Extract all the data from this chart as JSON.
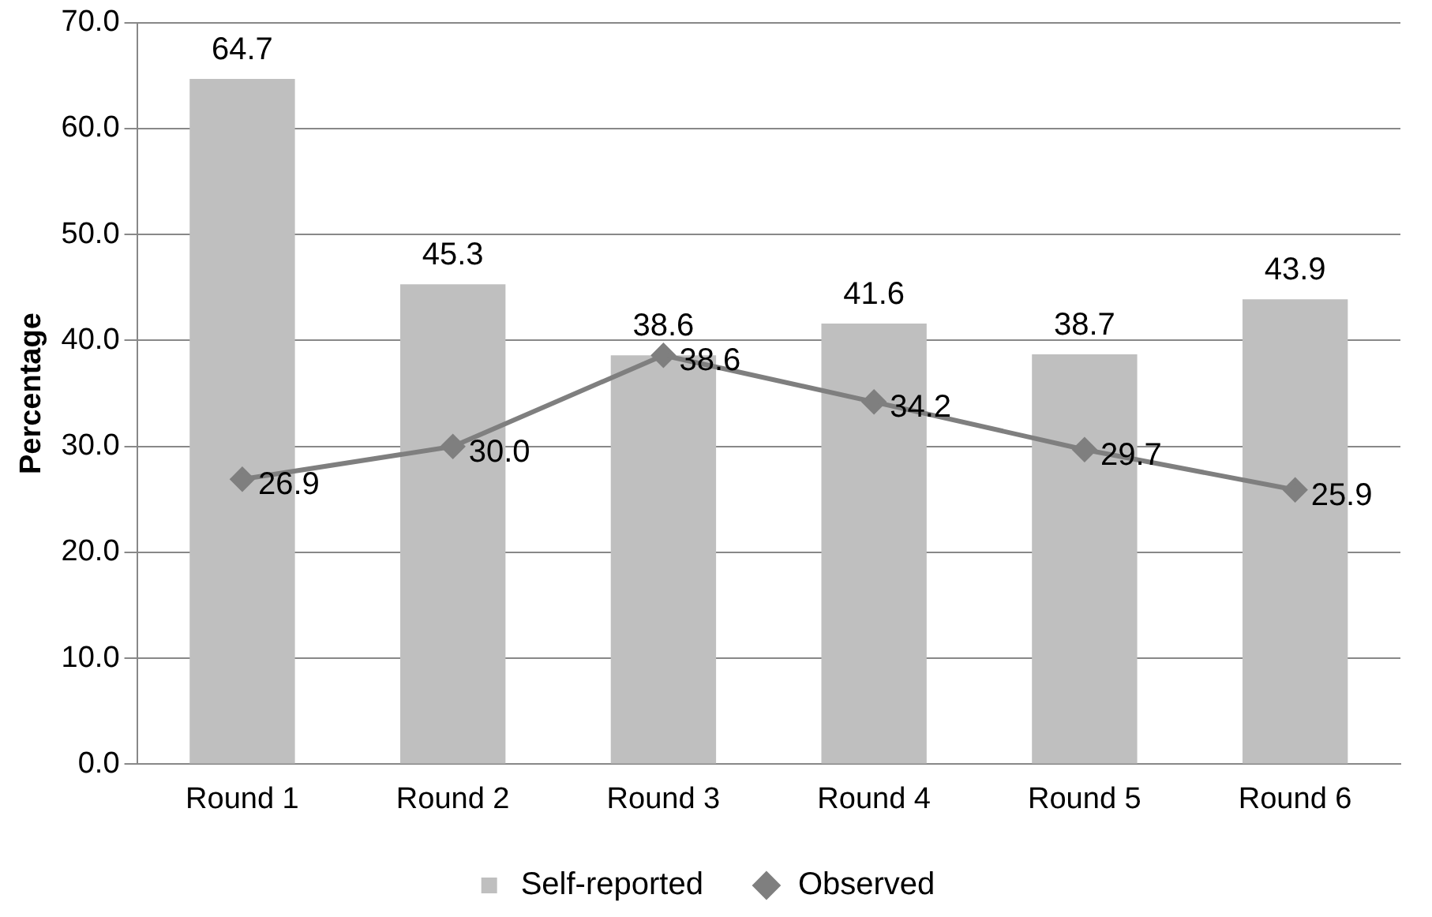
{
  "chart_data": {
    "type": "bar",
    "ylabel": "Percentage",
    "categories": [
      "Round 1",
      "Round 2",
      "Round 3",
      "Round 4",
      "Round 5",
      "Round 6"
    ],
    "series": [
      {
        "name": "Self-reported",
        "color": "#bfbfbf",
        "values": [
          64.7,
          45.3,
          38.6,
          41.6,
          38.7,
          43.9
        ],
        "value_labels": [
          "64.7",
          "45.3",
          "38.6",
          "41.6",
          "38.7",
          "43.9"
        ]
      },
      {
        "name": "Observed",
        "type": "line",
        "color": "#7f7f7f",
        "values": [
          26.9,
          30.0,
          38.6,
          34.2,
          29.7,
          25.9
        ],
        "value_labels": [
          "26.9",
          "30.0",
          "38.6",
          "34.2",
          "29.7",
          "25.9"
        ],
        "marker": "diamond"
      }
    ],
    "ylim": [
      0,
      70
    ],
    "yticks": [
      {
        "value": 0,
        "label": "0.0"
      },
      {
        "value": 10,
        "label": "10.0"
      },
      {
        "value": 20,
        "label": "20.0"
      },
      {
        "value": 30,
        "label": "30.0"
      },
      {
        "value": 40,
        "label": "40.0"
      },
      {
        "value": 50,
        "label": "50.0"
      },
      {
        "value": 60,
        "label": "60.0"
      },
      {
        "value": 70,
        "label": "70.0"
      }
    ],
    "grid": "y",
    "legend": "bottom"
  }
}
